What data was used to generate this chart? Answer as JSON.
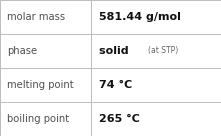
{
  "rows": [
    {
      "label": "molar mass",
      "value": "581.44 g/mol",
      "note": ""
    },
    {
      "label": "phase",
      "value": "solid",
      "note": "(at STP)"
    },
    {
      "label": "melting point",
      "value": "74 °C",
      "note": ""
    },
    {
      "label": "boiling point",
      "value": "265 °C",
      "note": ""
    }
  ],
  "col_split": 0.41,
  "background_color": "#ffffff",
  "border_color": "#bbbbbb",
  "label_fontsize": 7.2,
  "value_fontsize": 8.0,
  "note_fontsize": 5.5,
  "label_color": "#505050",
  "value_color": "#111111",
  "note_color": "#666666"
}
